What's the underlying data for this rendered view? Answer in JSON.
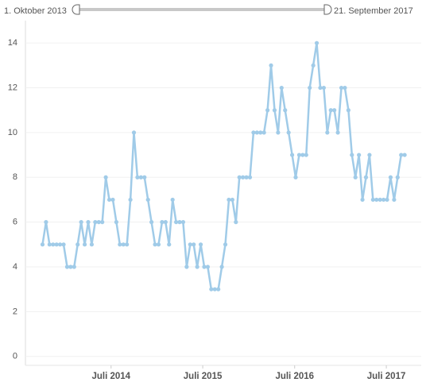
{
  "filter": {
    "start": "1. Oktober 2013",
    "end": "21. September 2017"
  },
  "chart_data": {
    "type": "line",
    "color": "#a0cbe8",
    "grid": true,
    "x": [
      "2013-10-01",
      "2013-10-15",
      "2013-10-29",
      "2013-11-12",
      "2013-11-26",
      "2013-12-10",
      "2013-12-24",
      "2014-01-07",
      "2014-01-21",
      "2014-02-04",
      "2014-02-18",
      "2014-03-04",
      "2014-03-18",
      "2014-04-01",
      "2014-04-15",
      "2014-04-29",
      "2014-05-13",
      "2014-05-27",
      "2014-06-10",
      "2014-06-24",
      "2014-07-08",
      "2014-07-22",
      "2014-08-05",
      "2014-08-19",
      "2014-09-02",
      "2014-09-16",
      "2014-09-30",
      "2014-10-14",
      "2014-10-28",
      "2014-11-11",
      "2014-11-25",
      "2014-12-09",
      "2014-12-23",
      "2015-01-06",
      "2015-01-20",
      "2015-02-03",
      "2015-02-17",
      "2015-03-03",
      "2015-03-17",
      "2015-03-31",
      "2015-04-14",
      "2015-04-28",
      "2015-05-12",
      "2015-05-26",
      "2015-06-09",
      "2015-06-23",
      "2015-07-07",
      "2015-07-21",
      "2015-08-04",
      "2015-08-18",
      "2015-09-01",
      "2015-09-15",
      "2015-09-29",
      "2015-10-13",
      "2015-10-27",
      "2015-11-10",
      "2015-11-24",
      "2015-12-08",
      "2015-12-22",
      "2016-01-05",
      "2016-01-19",
      "2016-02-02",
      "2016-02-16",
      "2016-03-01",
      "2016-03-15",
      "2016-03-29",
      "2016-04-12",
      "2016-04-26",
      "2016-05-10",
      "2016-05-24",
      "2016-06-07",
      "2016-06-21",
      "2016-07-05",
      "2016-07-19",
      "2016-08-02",
      "2016-08-16",
      "2016-08-30",
      "2016-09-13",
      "2016-09-27",
      "2016-10-11",
      "2016-10-25",
      "2016-11-08",
      "2016-11-22",
      "2016-12-06",
      "2016-12-20",
      "2017-01-03",
      "2017-01-17",
      "2017-01-31",
      "2017-02-14",
      "2017-02-28",
      "2017-03-14",
      "2017-03-28",
      "2017-04-11",
      "2017-04-25",
      "2017-05-09",
      "2017-05-23",
      "2017-06-06",
      "2017-06-20",
      "2017-07-04",
      "2017-07-18",
      "2017-08-01",
      "2017-08-15",
      "2017-08-29",
      "2017-09-12"
    ],
    "values": [
      5,
      6,
      5,
      5,
      5,
      5,
      5,
      4,
      4,
      4,
      5,
      6,
      5,
      6,
      5,
      6,
      6,
      6,
      8,
      7,
      7,
      6,
      5,
      5,
      5,
      7,
      10,
      8,
      8,
      8,
      7,
      6,
      5,
      5,
      6,
      6,
      5,
      7,
      6,
      6,
      6,
      4,
      5,
      5,
      4,
      5,
      4,
      4,
      3,
      3,
      3,
      4,
      5,
      7,
      7,
      6,
      8,
      8,
      8,
      8,
      10,
      10,
      10,
      10,
      11,
      13,
      11,
      10,
      12,
      11,
      10,
      9,
      8,
      9,
      9,
      9,
      12,
      13,
      14,
      12,
      12,
      10,
      11,
      11,
      10,
      12,
      12,
      11,
      9,
      8,
      9,
      7,
      8,
      9,
      7,
      7,
      7,
      7,
      7,
      8,
      7,
      8,
      9,
      9
    ],
    "xlim": [
      "2013-07-25",
      "2017-11-17"
    ],
    "xticks": [
      {
        "value": "2014-07-01",
        "label": "Juli 2014"
      },
      {
        "value": "2015-07-01",
        "label": "Juli 2015"
      },
      {
        "value": "2016-07-01",
        "label": "Juli 2016"
      },
      {
        "value": "2017-07-01",
        "label": "Juli 2017"
      }
    ],
    "ylim": [
      -0.4,
      15
    ],
    "yticks": [
      0,
      2,
      4,
      6,
      8,
      10,
      12,
      14
    ]
  }
}
